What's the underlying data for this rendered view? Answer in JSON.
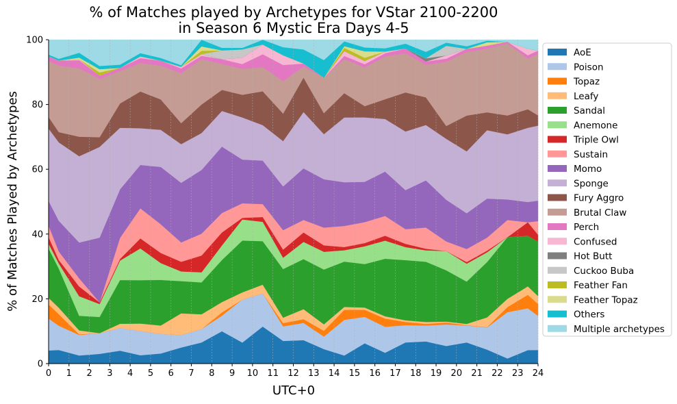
{
  "chart_data": {
    "type": "area",
    "stacked": true,
    "title": "% of Matches played by Archetypes for VStar 2100-2200\nin Season 6 Mystic Era Days 4-5",
    "xlabel": "UTC+0",
    "ylabel": "% of Matches Played by Archetypes",
    "xlim": [
      0,
      24
    ],
    "ylim": [
      0,
      100
    ],
    "x_ticks": [
      "0",
      "1",
      "2",
      "3",
      "4",
      "5",
      "6",
      "7",
      "8",
      "9",
      "10",
      "11",
      "12",
      "13",
      "14",
      "15",
      "16",
      "17",
      "18",
      "19",
      "20",
      "21",
      "22",
      "23",
      "24"
    ],
    "y_ticks": [
      "0",
      "20",
      "40",
      "60",
      "80",
      "100"
    ],
    "vertical_grid": true,
    "legend_position": "right",
    "x": [
      0,
      0.5,
      1.5,
      2.5,
      3.5,
      4.5,
      5.5,
      6.5,
      7.5,
      8.5,
      9.5,
      10.5,
      11.5,
      12.5,
      13.5,
      14.5,
      15.5,
      16.5,
      17.5,
      18.5,
      19.5,
      20.5,
      21.5,
      22.5,
      23.5,
      24
    ],
    "series": [
      {
        "name": "AoE",
        "color": "#1f77b4",
        "values": [
          4,
          4,
          2.5,
          3,
          4,
          2.5,
          3,
          5,
          6.3,
          10,
          6.5,
          11.5,
          7,
          7.5,
          4.5,
          2.5,
          6.3,
          3.3,
          6.5,
          6.8,
          5.5,
          6.5,
          4.3,
          1.5,
          4,
          4
        ]
      },
      {
        "name": "Poison",
        "color": "#aec7e8",
        "values": [
          9.7,
          7.1,
          6.3,
          6.4,
          7,
          7.3,
          5.8,
          3.9,
          4,
          4.8,
          13.3,
          10.3,
          4.5,
          5.5,
          3.9,
          11,
          8.2,
          7.9,
          5.3,
          4.9,
          6.7,
          5.2,
          6.8,
          13.5,
          12.4,
          10
        ]
      },
      {
        "name": "Topaz",
        "color": "#ff7f0e",
        "values": [
          4.3,
          3.4,
          0.2,
          0,
          0,
          0,
          0,
          0,
          0,
          1,
          0,
          0,
          1,
          1.2,
          1.8,
          3.1,
          2.2,
          2.5,
          1,
          0.5,
          0.6,
          0.1,
          0.1,
          1.5,
          4,
          3.5
        ]
      },
      {
        "name": "Leafy",
        "color": "#ffbb78",
        "values": [
          2,
          1.9,
          1.2,
          0,
          1.3,
          2.2,
          2.5,
          6.7,
          4.4,
          3.2,
          2.2,
          2.7,
          1.7,
          3.2,
          2,
          0.9,
          0.7,
          0.7,
          0.5,
          0.6,
          0.3,
          0.4,
          3,
          2.4,
          2.5,
          2.3
        ]
      },
      {
        "name": "Sandal",
        "color": "#2ca02c",
        "values": [
          15,
          11.5,
          4.5,
          5,
          13.5,
          13,
          13.5,
          10,
          9.5,
          13,
          16,
          13.5,
          15,
          16,
          17,
          14,
          13.5,
          17.5,
          18.5,
          18.5,
          16,
          13,
          17,
          18,
          15,
          16
        ]
      },
      {
        "name": "Anemone",
        "color": "#98df8a",
        "values": [
          1.5,
          1.5,
          6,
          4,
          6,
          9.5,
          5,
          3,
          3,
          4.5,
          6.5,
          6,
          3.5,
          5.5,
          5.5,
          3.5,
          5.5,
          5.5,
          4,
          3.5,
          6,
          5.5,
          3,
          0,
          0,
          0
        ]
      },
      {
        "name": "Triple Owl",
        "color": "#d62728",
        "values": [
          2,
          1,
          3,
          0.5,
          0.5,
          3,
          3,
          3,
          5,
          4,
          0.5,
          1.5,
          2.5,
          3,
          2,
          1,
          1,
          1.5,
          1,
          0.5,
          0,
          0.5,
          0.5,
          0,
          4,
          2
        ]
      },
      {
        "name": "Sustain",
        "color": "#ff9896",
        "values": [
          3.5,
          2.5,
          2.5,
          0,
          6.5,
          9,
          8.5,
          6,
          6.5,
          6,
          4.5,
          4,
          6,
          4,
          5.5,
          6.5,
          6.5,
          6,
          4.5,
          6.5,
          3,
          4,
          4,
          5,
          0,
          4
        ]
      },
      {
        "name": "Momo",
        "color": "#9467bd",
        "values": [
          7.5,
          9,
          11,
          20,
          15,
          13,
          17,
          18.5,
          19,
          20.5,
          13.5,
          13.5,
          13.5,
          16.5,
          15,
          13.5,
          12.5,
          13.5,
          12,
          14.5,
          13,
          11,
          12,
          6,
          6,
          6
        ]
      },
      {
        "name": "Sponge",
        "color": "#c5b0d5",
        "values": [
          22,
          23,
          26.5,
          28,
          19,
          11,
          11,
          12,
          11,
          11,
          13,
          11,
          14,
          18,
          14,
          20,
          20,
          16,
          18,
          17,
          19,
          19,
          21,
          19,
          22,
          22
        ]
      },
      {
        "name": "Fury Aggro",
        "color": "#8c564b",
        "values": [
          3.5,
          3,
          6,
          3,
          7.5,
          11,
          9,
          6.5,
          8.5,
          6.5,
          7,
          10.5,
          8.5,
          11,
          6.5,
          7.5,
          3.5,
          6,
          12,
          8.5,
          4,
          11,
          5.5,
          5.5,
          5.5,
          3
        ]
      },
      {
        "name": "Brutal Claw",
        "color": "#c49c94",
        "values": [
          17,
          19.5,
          21,
          18,
          10,
          8.5,
          10,
          15.5,
          13.5,
          8,
          8,
          7.5,
          10,
          3.5,
          11,
          10.5,
          12,
          13,
          12,
          10,
          20,
          19.5,
          19.5,
          21,
          15,
          18
        ]
      },
      {
        "name": "Perch",
        "color": "#e377c2",
        "values": [
          1.5,
          1.5,
          2.5,
          1,
          1,
          1.5,
          1.5,
          1.5,
          1,
          1.5,
          1.5,
          4,
          5,
          1,
          0,
          1,
          1,
          1,
          1.5,
          1,
          1,
          1,
          1,
          0.5,
          1,
          1
        ]
      },
      {
        "name": "Confused",
        "color": "#f7b6d2",
        "values": [
          0,
          0,
          0.3,
          0,
          0,
          0.5,
          0,
          0.5,
          0.5,
          0,
          2,
          3,
          3,
          0,
          0,
          1.5,
          1,
          0.5,
          0,
          0,
          1,
          0,
          0,
          0,
          2,
          0
        ]
      },
      {
        "name": "Hot Butt",
        "color": "#7f7f7f",
        "values": [
          0,
          0,
          0,
          0,
          0,
          0,
          0,
          0,
          0,
          0,
          0,
          0,
          0,
          0,
          0,
          0,
          0,
          0,
          0,
          1,
          0,
          0,
          0,
          0,
          0,
          0
        ]
      },
      {
        "name": "Cuckoo Buba",
        "color": "#c7c7c7",
        "values": [
          0,
          0,
          0,
          0,
          0,
          0,
          0,
          0,
          0,
          2.7,
          2.5,
          0,
          0,
          0,
          0,
          0,
          0,
          0,
          0,
          0,
          3,
          0,
          0,
          0,
          0,
          0
        ]
      },
      {
        "name": "Feather Fan",
        "color": "#bcbd22",
        "values": [
          0,
          0,
          0,
          1,
          0,
          0,
          0,
          0,
          1,
          0,
          0,
          0,
          0,
          0,
          0,
          1,
          1,
          0,
          0,
          0,
          0,
          0,
          0,
          0,
          0,
          0
        ]
      },
      {
        "name": "Feather Topaz",
        "color": "#dbdb8d",
        "values": [
          0,
          0,
          0.5,
          1,
          0,
          0,
          0,
          0,
          1.3,
          0,
          0,
          0,
          0,
          0,
          0,
          0.5,
          2,
          0,
          0,
          0,
          0,
          0,
          1,
          0,
          0,
          0
        ]
      },
      {
        "name": "Others",
        "color": "#17becf",
        "values": [
          0.5,
          0.5,
          1.5,
          1,
          1,
          1,
          0.8,
          0.5,
          2,
          0.8,
          0.5,
          1.5,
          2.5,
          4.5,
          5.5,
          1.5,
          1.2,
          1,
          1.5,
          2,
          1,
          0.8,
          0.5,
          0,
          0,
          0
        ]
      },
      {
        "name": "Multiple archetypes",
        "color": "#9edae5",
        "values": [
          4.5,
          5.6,
          4,
          8.1,
          7.7,
          4,
          5.4,
          7.9,
          0,
          2.5,
          2.5,
          0,
          2.3,
          3.1,
          6.3,
          0.5,
          2.4,
          2.6,
          1.2,
          3.7,
          0.9,
          2,
          0.3,
          0.6,
          2.6,
          3.2
        ]
      }
    ]
  }
}
